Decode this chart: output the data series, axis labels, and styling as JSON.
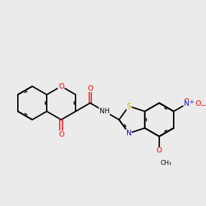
{
  "background_color": "#ebebeb",
  "bond_color": "#000000",
  "atom_colors": {
    "O": "#ff0000",
    "N": "#0000ff",
    "S": "#ccaa00",
    "H": "#00aaaa",
    "C": "#000000"
  },
  "s": 0.55
}
